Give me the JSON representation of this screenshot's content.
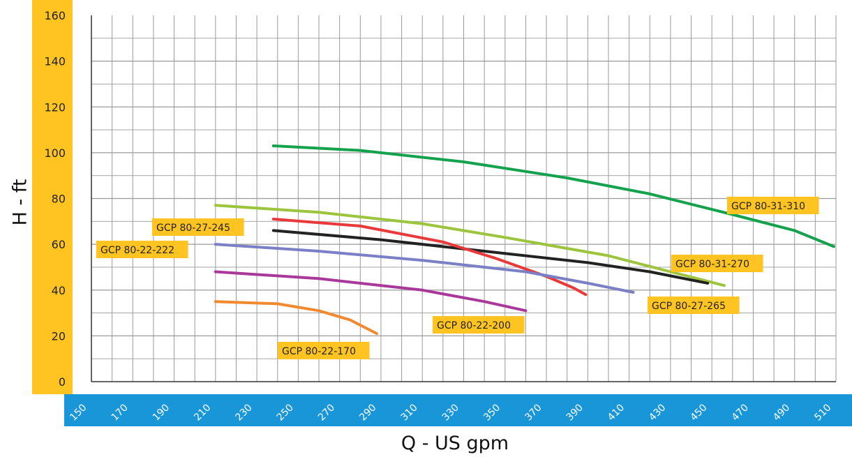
{
  "chart_data": {
    "type": "line",
    "xlabel": "Q - US gpm",
    "ylabel": "H - ft",
    "xlim": [
      150,
      510
    ],
    "ylim": [
      0,
      160
    ],
    "x_ticks": [
      150,
      170,
      190,
      210,
      230,
      250,
      270,
      290,
      310,
      330,
      350,
      370,
      390,
      410,
      430,
      450,
      470,
      490,
      510
    ],
    "y_ticks": [
      0,
      20,
      40,
      60,
      80,
      100,
      120,
      140,
      160
    ],
    "grid": true,
    "colors": {
      "y_axis_band": "#FFC421",
      "x_axis_band": "#1996D8",
      "label_box": "#FFC421",
      "grid": "#9a9a9a"
    },
    "series": [
      {
        "name": "GCP 80-31-310",
        "color": "#15A24D",
        "points": [
          [
            238,
            103
          ],
          [
            280,
            101
          ],
          [
            330,
            96
          ],
          [
            380,
            89
          ],
          [
            420,
            82
          ],
          [
            460,
            73
          ],
          [
            490,
            66
          ],
          [
            509,
            59
          ]
        ]
      },
      {
        "name": "GCP 80-31-270",
        "color": "#9CC43C",
        "points": [
          [
            210,
            77
          ],
          [
            260,
            74
          ],
          [
            310,
            69
          ],
          [
            350,
            63
          ],
          [
            400,
            55
          ],
          [
            430,
            48
          ],
          [
            456,
            42
          ]
        ]
      },
      {
        "name": "GCP 80-27-265",
        "color": "#222222",
        "points": [
          [
            238,
            66
          ],
          [
            290,
            62
          ],
          [
            340,
            57
          ],
          [
            390,
            52
          ],
          [
            420,
            48
          ],
          [
            448,
            43
          ]
        ]
      },
      {
        "name": "GCP 80-27-245",
        "color": "#E83A3A",
        "points": [
          [
            238,
            71
          ],
          [
            280,
            68
          ],
          [
            320,
            61
          ],
          [
            345,
            54
          ],
          [
            370,
            46
          ],
          [
            383,
            41
          ],
          [
            389,
            38
          ]
        ]
      },
      {
        "name": "GCP 80-22-222",
        "color": "#7B7FC6",
        "points": [
          [
            210,
            60
          ],
          [
            260,
            57
          ],
          [
            310,
            53
          ],
          [
            360,
            48
          ],
          [
            390,
            43
          ],
          [
            412,
            39
          ]
        ]
      },
      {
        "name": "GCP 80-22-200",
        "color": "#A8389A",
        "points": [
          [
            210,
            48
          ],
          [
            260,
            45
          ],
          [
            310,
            40
          ],
          [
            340,
            35
          ],
          [
            360,
            31
          ]
        ]
      },
      {
        "name": "GCP 80-22-170",
        "color": "#F08A30",
        "points": [
          [
            210,
            35
          ],
          [
            240,
            34
          ],
          [
            260,
            31
          ],
          [
            275,
            27
          ],
          [
            288,
            21
          ]
        ]
      }
    ],
    "labels": [
      {
        "text": "GCP 80-31-310",
        "series": "GCP 80-31-310"
      },
      {
        "text": "GCP 80-31-270",
        "series": "GCP 80-31-270"
      },
      {
        "text": "GCP 80-27-265",
        "series": "GCP 80-27-265"
      },
      {
        "text": "GCP 80-27-245",
        "series": "GCP 80-27-245"
      },
      {
        "text": "GCP 80-22-222",
        "series": "GCP 80-22-222"
      },
      {
        "text": "GCP 80-22-200",
        "series": "GCP 80-22-200"
      },
      {
        "text": "GCP 80-22-170",
        "series": "GCP 80-22-170"
      }
    ]
  }
}
